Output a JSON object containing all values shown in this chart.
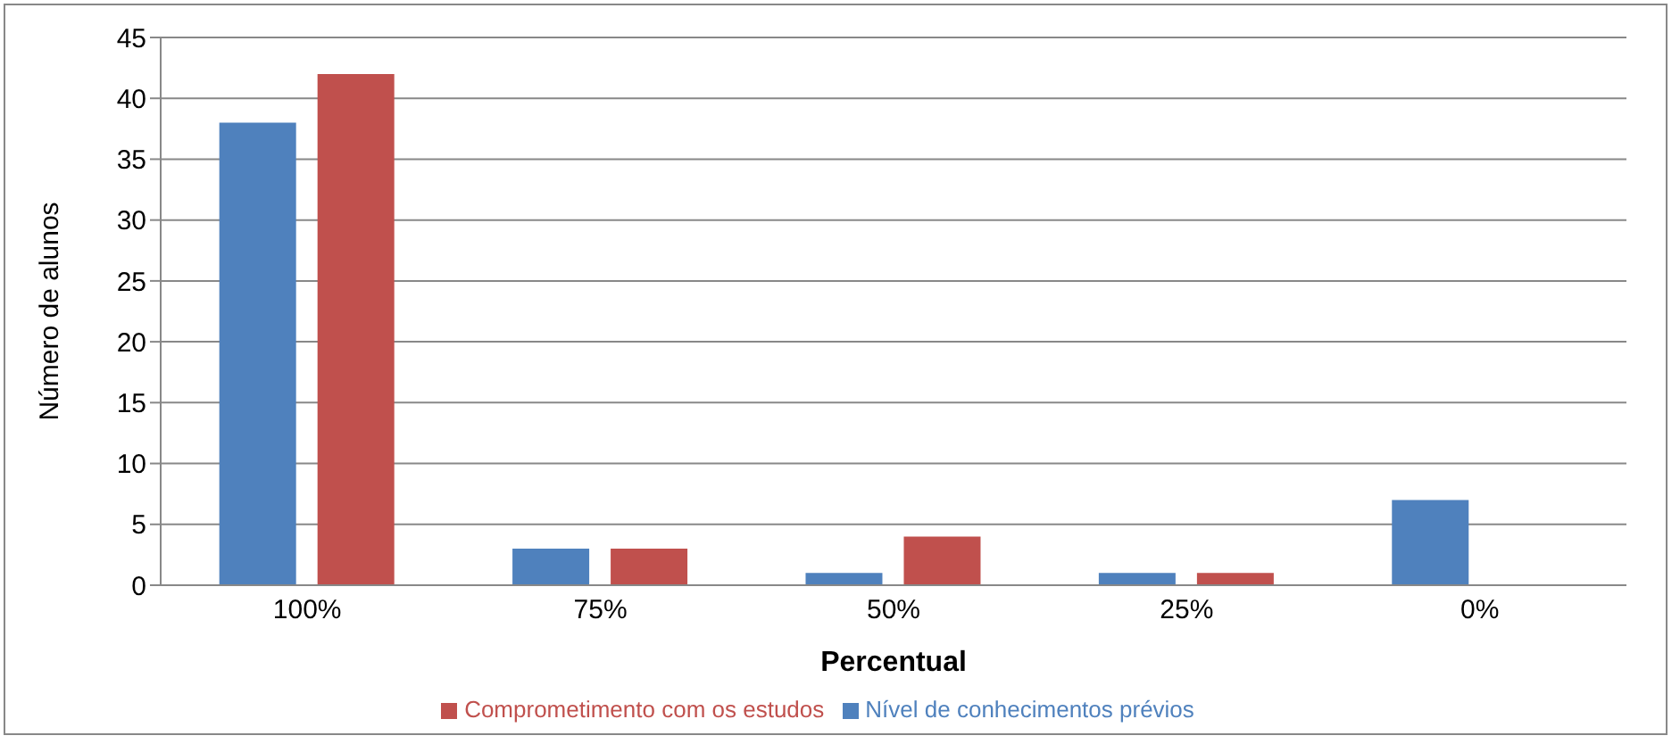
{
  "chart_data": {
    "type": "bar",
    "categories": [
      "100%",
      "75%",
      "50%",
      "25%",
      "0%"
    ],
    "series": [
      {
        "name": "Nível de conhecimentos prévios",
        "color": "#4f81bd",
        "values": [
          38,
          3,
          1,
          1,
          7
        ]
      },
      {
        "name": "Comprometimento com os estudos",
        "color": "#c0504d",
        "values": [
          42,
          3,
          4,
          1,
          0
        ]
      }
    ],
    "xlabel": "Percentual",
    "ylabel": "Número de alunos",
    "ylim": [
      0,
      45
    ],
    "yticks": [
      0,
      5,
      10,
      15,
      20,
      25,
      30,
      35,
      40,
      45
    ],
    "grid": "y",
    "legend": "bottom"
  }
}
